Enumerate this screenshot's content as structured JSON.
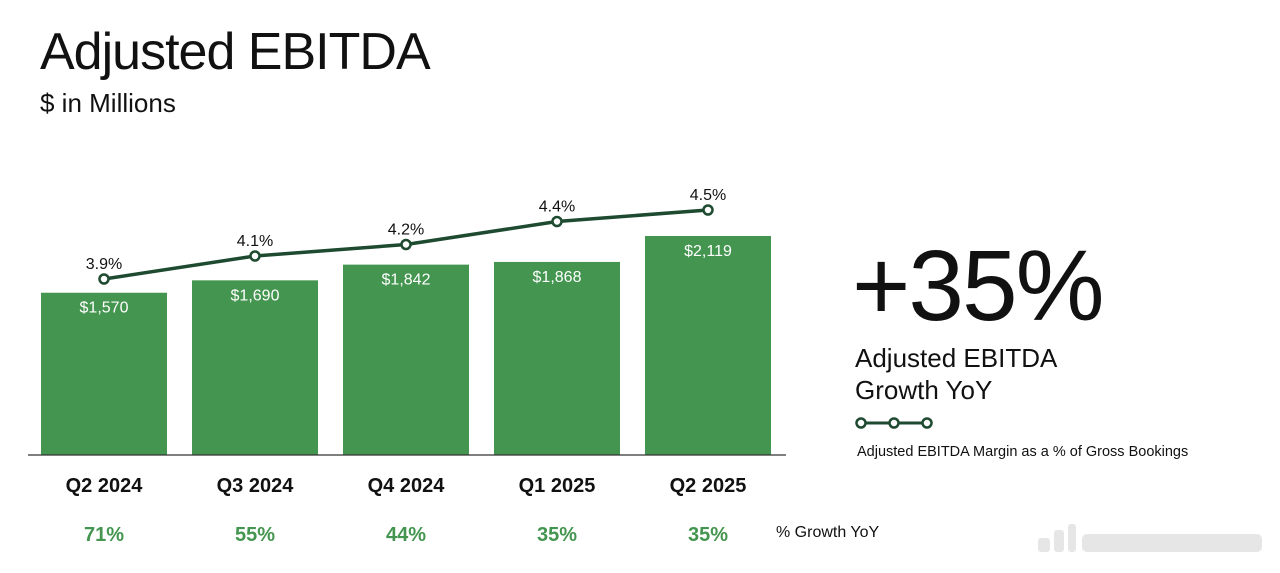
{
  "title": "Adjusted EBITDA",
  "subtitle": "$ in Millions",
  "kpi": {
    "value": "+35%",
    "label_line1": "Adjusted EBITDA",
    "label_line2": "Growth YoY"
  },
  "legend": {
    "line_label": "Adjusted EBITDA Margin as a % of Gross Bookings"
  },
  "growth_caption": "% Growth YoY",
  "colors": {
    "bar": "#43954f",
    "line": "#1e4a30",
    "growth_text": "#43954f",
    "text": "#111111"
  },
  "chart_data": {
    "type": "bar",
    "categories": [
      "Q2 2024",
      "Q3 2024",
      "Q4 2024",
      "Q1 2025",
      "Q2 2025"
    ],
    "values": [
      1570,
      1690,
      1842,
      1868,
      2119
    ],
    "value_labels": [
      "$1,570",
      "$1,690",
      "$1,842",
      "$1,868",
      "$2,119"
    ],
    "line_series": {
      "values": [
        3.9,
        4.1,
        4.2,
        4.4,
        4.5
      ],
      "labels": [
        "3.9%",
        "4.1%",
        "4.2%",
        "4.4%",
        "4.5%"
      ]
    },
    "growth_yoy": [
      "71%",
      "55%",
      "44%",
      "35%",
      "35%"
    ],
    "grid": false
  }
}
